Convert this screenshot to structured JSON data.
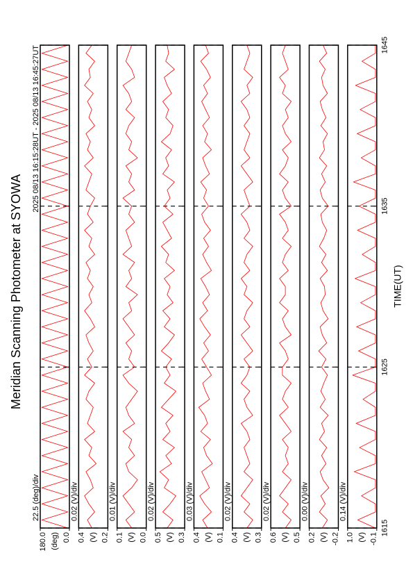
{
  "chart_data": {
    "type": "line",
    "title": "Meridian Scanning Photometer at SYOWA",
    "subtitle": "2025 08/13 16:15:28UT - 2025 08/13 16:45:27UT",
    "x_label": "TIME(UT)",
    "xlim": [
      1615,
      1645
    ],
    "xticks": [
      1615,
      1625,
      1635,
      1645
    ],
    "grid": true,
    "x": [
      1615,
      1615.5,
      1616,
      1616.5,
      1617,
      1617.5,
      1618,
      1618.5,
      1619,
      1619.5,
      1620,
      1620.5,
      1621,
      1621.5,
      1622,
      1622.5,
      1623,
      1623.5,
      1624,
      1624.5,
      1625,
      1625.5,
      1626,
      1626.5,
      1627,
      1627.5,
      1628,
      1628.5,
      1629,
      1629.5,
      1630,
      1630.5,
      1631,
      1631.5,
      1632,
      1632.5,
      1633,
      1633.5,
      1634,
      1634.5,
      1635,
      1635.5,
      1636,
      1636.5,
      1637,
      1637.5,
      1638,
      1638.5,
      1639,
      1639.5,
      1640,
      1640.5,
      1641,
      1641.5,
      1642,
      1642.5,
      1643,
      1643.5,
      1644,
      1644.5,
      1645
    ],
    "panels": [
      {
        "scale": "22.5 (deg)/div",
        "unit": "(deg)",
        "color": "#ff0000",
        "ylim": [
          0,
          180
        ],
        "yticks": [
          {
            "value": 0,
            "label": "0.0"
          },
          {
            "value": 180,
            "label": "180.0"
          }
        ],
        "values": [
          10,
          170,
          10,
          170,
          10,
          170,
          10,
          170,
          10,
          170,
          10,
          170,
          10,
          170,
          10,
          170,
          10,
          170,
          10,
          170,
          10,
          170,
          10,
          170,
          10,
          170,
          10,
          170,
          10,
          170,
          10,
          170,
          10,
          170,
          10,
          170,
          10,
          170,
          10,
          170,
          10,
          170,
          10,
          170,
          10,
          170,
          10,
          170,
          10,
          170,
          10,
          170,
          10,
          170,
          10,
          170,
          10,
          170,
          10,
          170,
          10
        ]
      },
      {
        "scale": "0.02 (V)/div",
        "unit": "(V)",
        "color": "#ff0000",
        "ylim": [
          0.2,
          0.4
        ],
        "yticks": [
          0.2,
          0.4
        ],
        "values": [
          0.31,
          0.34,
          0.29,
          0.33,
          0.36,
          0.3,
          0.32,
          0.35,
          0.28,
          0.33,
          0.31,
          0.36,
          0.29,
          0.34,
          0.32,
          0.3,
          0.35,
          0.33,
          0.29,
          0.36,
          0.31,
          0.34,
          0.3,
          0.33,
          0.35,
          0.29,
          0.32,
          0.36,
          0.31,
          0.33,
          0.3,
          0.34,
          0.32,
          0.35,
          0.29,
          0.33,
          0.31,
          0.36,
          0.3,
          0.34,
          0.32,
          0.29,
          0.35,
          0.33,
          0.31,
          0.36,
          0.3,
          0.34,
          0.32,
          0.35,
          0.29,
          0.33,
          0.31,
          0.34,
          0.3,
          0.36,
          0.32,
          0.33,
          0.29,
          0.35,
          0.31
        ]
      },
      {
        "scale": "0.01 (V)/div",
        "unit": "(V)",
        "color": "#ff0000",
        "ylim": [
          0.0,
          0.1
        ],
        "yticks": [
          {
            "value": 0,
            "label": "0.0"
          },
          0.1
        ],
        "values": [
          0.05,
          0.07,
          0.04,
          0.06,
          0.08,
          0.05,
          0.03,
          0.06,
          0.07,
          0.04,
          0.06,
          0.05,
          0.08,
          0.04,
          0.06,
          0.07,
          0.05,
          0.03,
          0.06,
          0.08,
          0.04,
          0.06,
          0.05,
          0.07,
          0.04,
          0.06,
          0.08,
          0.05,
          0.06,
          0.03,
          0.07,
          0.05,
          0.06,
          0.04,
          0.08,
          0.05,
          0.06,
          0.07,
          0.04,
          0.06,
          0.05,
          0.08,
          0.04,
          0.06,
          0.05,
          0.07,
          0.03,
          0.06,
          0.05,
          0.07,
          0.06,
          0.04,
          0.07,
          0.05,
          0.06,
          0.08,
          0.04,
          0.05,
          0.07,
          0.06,
          0.05
        ]
      },
      {
        "scale": "0.02 (V)/div",
        "unit": "(V)",
        "color": "#ff0000",
        "ylim": [
          0.3,
          0.5
        ],
        "yticks": [
          0.3,
          0.5
        ],
        "values": [
          0.42,
          0.38,
          0.45,
          0.4,
          0.36,
          0.44,
          0.41,
          0.47,
          0.39,
          0.43,
          0.37,
          0.45,
          0.4,
          0.43,
          0.38,
          0.46,
          0.41,
          0.36,
          0.44,
          0.4,
          0.43,
          0.39,
          0.46,
          0.41,
          0.37,
          0.44,
          0.4,
          0.45,
          0.38,
          0.42,
          0.4,
          0.44,
          0.37,
          0.43,
          0.41,
          0.46,
          0.39,
          0.42,
          0.45,
          0.38,
          0.44,
          0.4,
          0.42,
          0.37,
          0.45,
          0.41,
          0.43,
          0.39,
          0.46,
          0.4,
          0.38,
          0.43,
          0.41,
          0.45,
          0.39,
          0.42,
          0.44,
          0.37,
          0.43,
          0.41,
          0.42
        ]
      },
      {
        "scale": "0.03 (V)/div",
        "unit": "(V)",
        "color": "#ff0000",
        "ylim": [
          0.1,
          0.4
        ],
        "yticks": [
          0.1,
          0.4
        ],
        "values": [
          0.26,
          0.31,
          0.22,
          0.29,
          0.34,
          0.24,
          0.28,
          0.32,
          0.21,
          0.27,
          0.3,
          0.23,
          0.33,
          0.26,
          0.29,
          0.35,
          0.24,
          0.28,
          0.31,
          0.22,
          0.27,
          0.32,
          0.25,
          0.3,
          0.23,
          0.29,
          0.34,
          0.26,
          0.31,
          0.24,
          0.28,
          0.33,
          0.22,
          0.27,
          0.31,
          0.25,
          0.3,
          0.23,
          0.29,
          0.32,
          0.25,
          0.3,
          0.27,
          0.33,
          0.24,
          0.28,
          0.31,
          0.22,
          0.29,
          0.26,
          0.31,
          0.24,
          0.28,
          0.32,
          0.26,
          0.3,
          0.23,
          0.27,
          0.33,
          0.25,
          0.28
        ]
      },
      {
        "scale": "0.02 (V)/div",
        "unit": "(V)",
        "color": "#ff0000",
        "ylim": [
          0.3,
          0.4
        ],
        "yticks": [
          0.3,
          0.4
        ],
        "values": [
          0.35,
          0.33,
          0.36,
          0.34,
          0.37,
          0.35,
          0.33,
          0.36,
          0.34,
          0.35,
          0.36,
          0.34,
          0.35,
          0.37,
          0.33,
          0.35,
          0.36,
          0.34,
          0.37,
          0.35,
          0.34,
          0.36,
          0.33,
          0.35,
          0.37,
          0.34,
          0.36,
          0.35,
          0.33,
          0.36,
          0.35,
          0.37,
          0.34,
          0.36,
          0.35,
          0.33,
          0.36,
          0.34,
          0.35,
          0.37,
          0.34,
          0.35,
          0.36,
          0.33,
          0.35,
          0.37,
          0.34,
          0.36,
          0.35,
          0.34,
          0.36,
          0.34,
          0.35,
          0.37,
          0.34,
          0.35,
          0.33,
          0.36,
          0.35,
          0.34,
          0.35
        ]
      },
      {
        "scale": "0.02 (V)/div",
        "unit": "(V)",
        "color": "#ff0000",
        "ylim": [
          0.5,
          0.6
        ],
        "yticks": [
          0.5,
          0.6
        ],
        "values": [
          0.55,
          0.53,
          0.56,
          0.54,
          0.57,
          0.55,
          0.53,
          0.56,
          0.54,
          0.55,
          0.54,
          0.56,
          0.53,
          0.55,
          0.57,
          0.54,
          0.56,
          0.55,
          0.53,
          0.56,
          0.56,
          0.54,
          0.55,
          0.57,
          0.53,
          0.55,
          0.56,
          0.54,
          0.57,
          0.55,
          0.55,
          0.57,
          0.54,
          0.56,
          0.55,
          0.53,
          0.56,
          0.54,
          0.55,
          0.57,
          0.53,
          0.55,
          0.56,
          0.54,
          0.57,
          0.55,
          0.54,
          0.56,
          0.53,
          0.55,
          0.56,
          0.54,
          0.55,
          0.53,
          0.56,
          0.55,
          0.57,
          0.54,
          0.55,
          0.56,
          0.55
        ]
      },
      {
        "scale": "0.00 (V)/div",
        "unit": "(V)",
        "color": "#ff0000",
        "ylim": [
          -0.2,
          0.2
        ],
        "yticks": [
          -0.2,
          0.2
        ],
        "values": [
          0.02,
          -0.05,
          0.06,
          -0.02,
          0.04,
          -0.07,
          0.01,
          0.05,
          -0.03,
          0.03,
          -0.04,
          0.06,
          -0.01,
          0.03,
          -0.06,
          0.05,
          -0.02,
          0.04,
          0.0,
          -0.05,
          0.03,
          -0.03,
          0.07,
          -0.04,
          0.02,
          0.05,
          -0.06,
          0.01,
          0.04,
          -0.02,
          -0.01,
          0.05,
          -0.05,
          0.03,
          -0.03,
          0.06,
          0.0,
          -0.04,
          0.02,
          0.04,
          -0.06,
          0.02,
          0.05,
          -0.02,
          0.03,
          -0.04,
          0.06,
          -0.01,
          0.01,
          -0.05,
          0.04,
          -0.03,
          0.02,
          0.05,
          -0.05,
          0.01,
          0.03,
          -0.02,
          0.06,
          -0.04,
          0.01
        ]
      },
      {
        "scale": "0.14 (V)/div",
        "unit": "(V)",
        "color": "#ff0000",
        "ylim": [
          -0.1,
          1.0
        ],
        "yticks": [
          -0.1,
          {
            "value": 1,
            "label": "1.0"
          }
        ],
        "values": [
          -0.05,
          0.62,
          -0.05,
          -0.05,
          0.48,
          -0.05,
          -0.05,
          0.75,
          -0.05,
          -0.05,
          0.55,
          -0.05,
          -0.05,
          0.68,
          -0.05,
          -0.05,
          0.42,
          -0.05,
          -0.05,
          0.81,
          -0.05,
          -0.05,
          0.59,
          -0.05,
          -0.05,
          0.66,
          -0.05,
          -0.05,
          0.51,
          -0.05,
          -0.05,
          0.72,
          -0.05,
          -0.05,
          0.45,
          -0.05,
          -0.05,
          0.63,
          -0.05,
          -0.05,
          0.57,
          -0.05,
          -0.05,
          0.78,
          -0.05,
          -0.05,
          0.49,
          -0.05,
          -0.05,
          0.64,
          -0.05,
          -0.05,
          0.53,
          -0.05,
          -0.05,
          0.7,
          -0.05,
          -0.05,
          0.46,
          -0.05,
          -0.05
        ]
      }
    ]
  }
}
